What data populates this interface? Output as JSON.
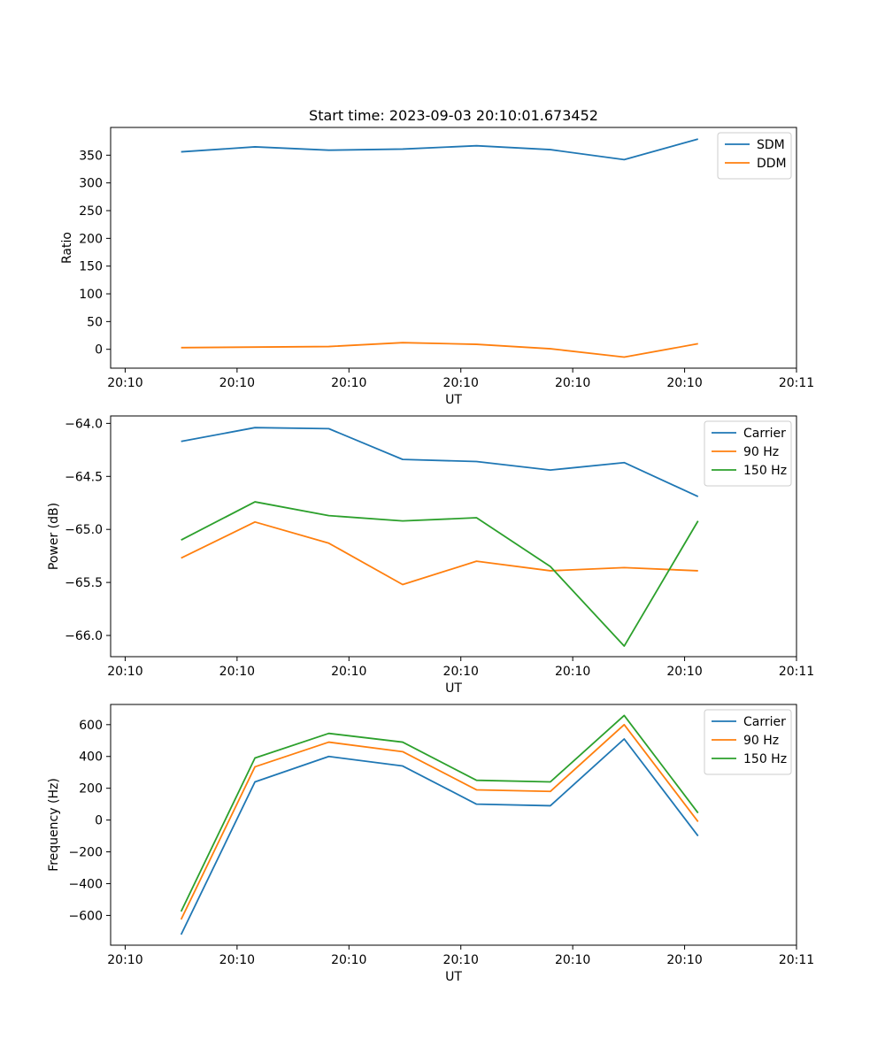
{
  "title": "Start time: 2023-09-03 20:10:01.673452",
  "colors": {
    "blue": "#1f77b4",
    "orange": "#ff7f0e",
    "green": "#2ca02c"
  },
  "chart_data": [
    {
      "type": "line",
      "title": "Start time: 2023-09-03 20:10:01.673452",
      "xlabel": "UT",
      "ylabel": "Ratio",
      "x_ticks": [
        "20:10",
        "20:10",
        "20:10",
        "20:10",
        "20:10",
        "20:10",
        "20:11"
      ],
      "x_tick_values": [
        0,
        1,
        2,
        3,
        4,
        5,
        6
      ],
      "xlim": [
        -0.13,
        6.0
      ],
      "ylim": [
        -34,
        400
      ],
      "y_ticks": [
        0,
        50,
        100,
        150,
        200,
        250,
        300,
        350
      ],
      "x": [
        0.5,
        1.16,
        1.82,
        2.48,
        3.14,
        3.8,
        4.46,
        5.12
      ],
      "legend": "top-right",
      "series": [
        {
          "name": "SDM",
          "color": "#1f77b4",
          "values": [
            356,
            365,
            359,
            361,
            367,
            360,
            342,
            379
          ]
        },
        {
          "name": "DDM",
          "color": "#ff7f0e",
          "values": [
            3,
            4,
            5,
            12,
            9,
            1,
            -14,
            10
          ]
        }
      ]
    },
    {
      "type": "line",
      "title": "",
      "xlabel": "UT",
      "ylabel": "Power (dB)",
      "x_ticks": [
        "20:10",
        "20:10",
        "20:10",
        "20:10",
        "20:10",
        "20:10",
        "20:11"
      ],
      "x_tick_values": [
        0,
        1,
        2,
        3,
        4,
        5,
        6
      ],
      "xlim": [
        -0.13,
        6.0
      ],
      "ylim": [
        -66.2,
        -63.93
      ],
      "y_ticks": [
        -66.0,
        -65.5,
        -65.0,
        -64.5,
        -64.0
      ],
      "y_tick_labels": [
        "−66.0",
        "−65.5",
        "−65.0",
        "−64.5",
        "−64.0"
      ],
      "x": [
        0.5,
        1.16,
        1.82,
        2.48,
        3.14,
        3.8,
        4.46,
        5.12
      ],
      "legend": "top-right",
      "series": [
        {
          "name": "Carrier",
          "color": "#1f77b4",
          "values": [
            -64.17,
            -64.04,
            -64.05,
            -64.34,
            -64.36,
            -64.44,
            -64.37,
            -64.69
          ]
        },
        {
          "name": "90 Hz",
          "color": "#ff7f0e",
          "values": [
            -65.27,
            -64.93,
            -65.13,
            -65.52,
            -65.3,
            -65.39,
            -65.36,
            -65.39
          ]
        },
        {
          "name": "150 Hz",
          "color": "#2ca02c",
          "values": [
            -65.1,
            -64.74,
            -64.87,
            -64.92,
            -64.89,
            -65.35,
            -66.1,
            -64.92
          ]
        }
      ]
    },
    {
      "type": "line",
      "title": "",
      "xlabel": "UT",
      "ylabel": "Frequency (Hz)",
      "x_ticks": [
        "20:10",
        "20:10",
        "20:10",
        "20:10",
        "20:10",
        "20:10",
        "20:11"
      ],
      "x_tick_values": [
        0,
        1,
        2,
        3,
        4,
        5,
        6
      ],
      "xlim": [
        -0.13,
        6.0
      ],
      "ylim": [
        -787,
        727
      ],
      "y_ticks": [
        -600,
        -400,
        -200,
        0,
        200,
        400,
        600
      ],
      "y_tick_labels": [
        "−600",
        "−400",
        "−200",
        "0",
        "200",
        "400",
        "600"
      ],
      "x": [
        0.5,
        1.16,
        1.82,
        2.48,
        3.14,
        3.8,
        4.46,
        5.12
      ],
      "legend": "top-right",
      "series": [
        {
          "name": "Carrier",
          "color": "#1f77b4",
          "values": [
            -720,
            240,
            400,
            340,
            100,
            90,
            510,
            -100
          ]
        },
        {
          "name": "90 Hz",
          "color": "#ff7f0e",
          "values": [
            -625,
            335,
            490,
            430,
            190,
            180,
            600,
            -10
          ]
        },
        {
          "name": "150 Hz",
          "color": "#2ca02c",
          "values": [
            -575,
            390,
            545,
            490,
            250,
            240,
            658,
            45
          ]
        }
      ]
    }
  ]
}
